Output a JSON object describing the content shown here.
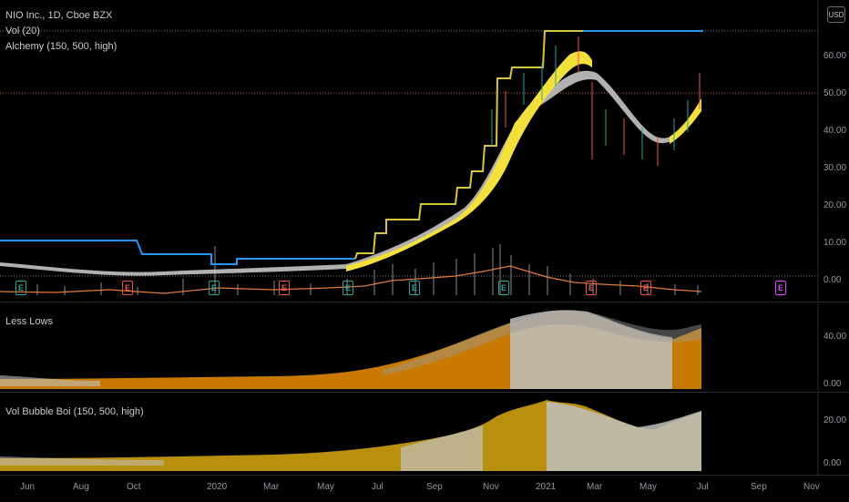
{
  "main_pane": {
    "legend": [
      "NIO Inc., 1D, Cboe BZX",
      "Vol (20)",
      "Alchemy (150, 500, high)"
    ],
    "currency": "USD",
    "y_ticks": [
      "60.00",
      "50.00",
      "40.00",
      "30.00",
      "20.00",
      "10.00",
      "0.00"
    ],
    "earnings": [
      {
        "label": "E",
        "kind": "beat"
      },
      {
        "label": "E",
        "kind": "miss"
      },
      {
        "label": "E",
        "kind": "beat"
      },
      {
        "label": "E",
        "kind": "miss"
      },
      {
        "label": "E",
        "kind": "beat"
      },
      {
        "label": "E",
        "kind": "beat"
      },
      {
        "label": "E",
        "kind": "beat"
      },
      {
        "label": "E",
        "kind": "miss"
      },
      {
        "label": "E",
        "kind": "miss"
      },
      {
        "label": "E",
        "kind": "upcoming"
      }
    ]
  },
  "less_lows_pane": {
    "legend": "Less Lows",
    "y_ticks": [
      "40.00",
      "0.00"
    ]
  },
  "vol_bubble_pane": {
    "legend": "Vol Bubble Boi (150, 500, high)",
    "y_ticks": [
      "20.00",
      "0.00"
    ]
  },
  "x_axis": [
    "Jun",
    "Aug",
    "Oct",
    "2020",
    "Mar",
    "May",
    "Jul",
    "Sep",
    "Nov",
    "2021",
    "Mar",
    "May",
    "Jul",
    "Sep",
    "Nov"
  ],
  "colors": {
    "background": "#000000",
    "resistance_line": "#2196f3",
    "alchemy_fill": "#f5e03a",
    "alchemy_band": "#d8d8d8",
    "volume_ma": "#e07b39",
    "earn_beat": "#26a69a",
    "earn_miss": "#ef5350",
    "earn_upcoming": "#e040fb",
    "orange_area": "#c87a00",
    "gold_area": "#b8900e",
    "grey_area": "#c0c0c0"
  }
}
